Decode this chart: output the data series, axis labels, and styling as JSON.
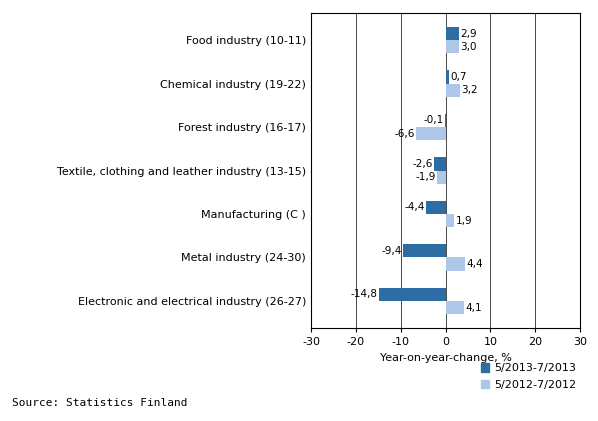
{
  "categories": [
    "Electronic and electrical industry (26-27)",
    "Metal industry (24-30)",
    "Manufacturing (C )",
    "Textile, clothing and leather industry (13-15)",
    "Forest industry (16-17)",
    "Chemical industry (19-22)",
    "Food industry (10-11)"
  ],
  "series1_values": [
    -14.8,
    -9.4,
    -4.4,
    -2.6,
    -0.1,
    0.7,
    2.9
  ],
  "series2_values": [
    4.1,
    4.4,
    1.9,
    -1.9,
    -6.6,
    3.2,
    3.0
  ],
  "series1_label": "5/2013-7/2013",
  "series2_label": "5/2012-7/2012",
  "series1_color": "#2e6da4",
  "series2_color": "#aec6e8",
  "xlabel": "Year-on-year-change, %",
  "xlim": [
    -30,
    30
  ],
  "xticks": [
    -30,
    -20,
    -10,
    0,
    10,
    20,
    30
  ],
  "bar_height": 0.3,
  "source_text": "Source: Statistics Finland",
  "background_color": "#ffffff",
  "label_fontsize": 8,
  "tick_fontsize": 8,
  "source_fontsize": 8,
  "annotation_fontsize": 7.5,
  "legend_fontsize": 8
}
